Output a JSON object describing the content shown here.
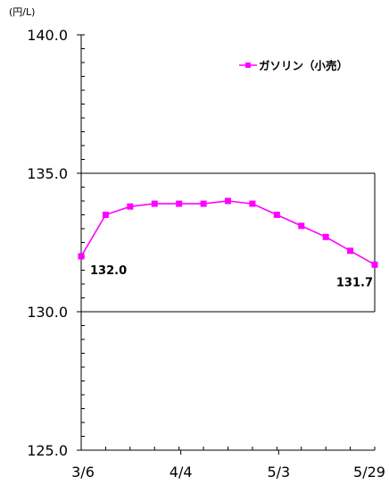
{
  "chart_data": {
    "type": "line",
    "unit_label": "(円/L)",
    "ylim": [
      125.0,
      140.0
    ],
    "y_ticks": [
      "125.0",
      "130.0",
      "135.0",
      "140.0"
    ],
    "x_tick_labels": [
      "3/6",
      "4/4",
      "5/3",
      "5/29"
    ],
    "grid": "horizontal at 130.0 and 135.0",
    "legend_position": "top-right",
    "series": [
      {
        "name": "ガソリン（小売）",
        "color": "#ff00ff",
        "values": [
          132.0,
          133.5,
          133.8,
          133.9,
          133.9,
          133.9,
          134.0,
          133.9,
          133.5,
          133.1,
          132.7,
          132.2,
          131.7
        ]
      }
    ],
    "annotations": [
      {
        "point_index": 0,
        "text": "132.0"
      },
      {
        "point_index": 12,
        "text": "131.7"
      }
    ]
  }
}
